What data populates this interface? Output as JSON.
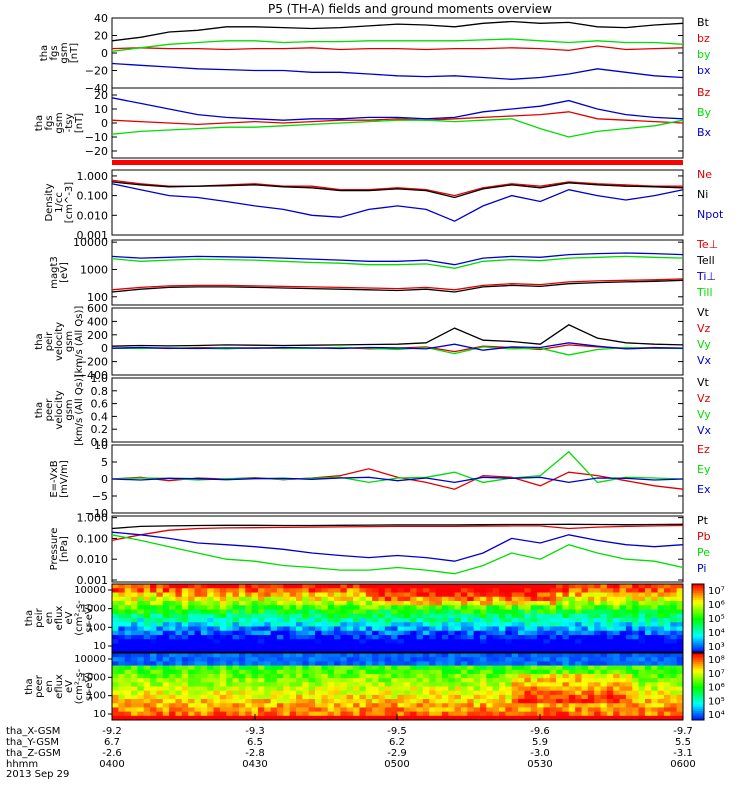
{
  "title": "P5 (TH-A) fields and ground moments overview",
  "date": "2013 Sep 29",
  "colors": {
    "black": "#000000",
    "red": "#e00000",
    "green": "#00dd00",
    "blue": "#0000cc"
  },
  "colorbar_ion": [
    "10⁷",
    "10⁶",
    "10⁵",
    "10⁴",
    "10³"
  ],
  "colorbar_electron": [
    "10⁸",
    "10⁷",
    "10⁶",
    "10⁵",
    "10⁴"
  ],
  "footer": {
    "rows": [
      {
        "label": "tha_X-GSM",
        "values": [
          "-9.2",
          "-9.3",
          "-9.5",
          "-9.6",
          "-9.7"
        ]
      },
      {
        "label": "tha_Y-GSM",
        "values": [
          "6.7",
          "6.5",
          "6.2",
          "5.9",
          "5.5"
        ]
      },
      {
        "label": "tha_Z-GSM",
        "values": [
          "-2.6",
          "-2.8",
          "-2.9",
          "-3.0",
          "-3.1"
        ]
      },
      {
        "label": "hhmm",
        "values": [
          "0400",
          "0430",
          "0500",
          "0530",
          "0600"
        ]
      }
    ]
  },
  "chart_data": [
    {
      "type": "line",
      "ylabel": [
        "tha",
        "fgs",
        "gsm",
        "[nT]"
      ],
      "ylim": [
        -40,
        40
      ],
      "ticks": [
        {
          "v": 40,
          "t": "40"
        },
        {
          "v": 20,
          "t": "20"
        },
        {
          "v": 0,
          "t": "0"
        },
        {
          "v": -20,
          "t": "−20"
        },
        {
          "v": -40,
          "t": "−40"
        }
      ],
      "series": [
        {
          "name": "Bt",
          "color": "black",
          "values": [
            14,
            18,
            24,
            26,
            30,
            30,
            29,
            28,
            29,
            31,
            33,
            32,
            30,
            34,
            36,
            34,
            35,
            30,
            29,
            32,
            34
          ]
        },
        {
          "name": "bz",
          "color": "red",
          "values": [
            5,
            6,
            5,
            5,
            4,
            5,
            5,
            6,
            4,
            5,
            5,
            4,
            5,
            5,
            6,
            5,
            3,
            8,
            4,
            5,
            6
          ]
        },
        {
          "name": "by",
          "color": "green",
          "values": [
            2,
            6,
            10,
            12,
            14,
            14,
            12,
            13,
            13,
            14,
            14,
            14,
            14,
            15,
            16,
            14,
            12,
            14,
            12,
            12,
            10
          ]
        },
        {
          "name": "bx",
          "color": "blue",
          "values": [
            -12,
            -14,
            -16,
            -18,
            -19,
            -20,
            -20,
            -22,
            -22,
            -24,
            -26,
            -27,
            -26,
            -28,
            -30,
            -28,
            -24,
            -18,
            -22,
            -26,
            -28
          ]
        }
      ]
    },
    {
      "type": "line",
      "ylabel": [
        "tha",
        "fgs",
        "gsm",
        "-tsy",
        "[nT]"
      ],
      "ylim": [
        -25,
        25
      ],
      "ticks": [
        {
          "v": 20,
          "t": "20"
        },
        {
          "v": 10,
          "t": "10"
        },
        {
          "v": 0,
          "t": "0"
        },
        {
          "v": -10,
          "t": "−10"
        },
        {
          "v": -20,
          "t": "−20"
        }
      ],
      "series": [
        {
          "name": "Bz",
          "color": "red",
          "values": [
            2,
            1,
            0,
            -1,
            0,
            1,
            0,
            1,
            2,
            2,
            3,
            2,
            3,
            4,
            5,
            6,
            8,
            3,
            2,
            1,
            0
          ]
        },
        {
          "name": "By",
          "color": "green",
          "values": [
            -8,
            -6,
            -5,
            -4,
            -3,
            -3,
            -2,
            -1,
            0,
            1,
            2,
            2,
            1,
            2,
            3,
            -4,
            -10,
            -6,
            -4,
            -2,
            2
          ]
        },
        {
          "name": "Bx",
          "color": "blue",
          "values": [
            18,
            14,
            10,
            6,
            4,
            3,
            2,
            3,
            3,
            4,
            4,
            3,
            4,
            8,
            10,
            12,
            16,
            10,
            6,
            4,
            3
          ]
        }
      ]
    },
    {
      "type": "line",
      "log": true,
      "ylabel": [
        "Density",
        "1/cc",
        "[cm^-3]"
      ],
      "ylim": [
        0.001,
        2
      ],
      "ticks": [
        {
          "v": 1,
          "t": "1.000"
        },
        {
          "v": 0.1,
          "t": "0.100"
        },
        {
          "v": 0.01,
          "t": "0.010"
        },
        {
          "v": 0.001,
          "t": "0.001"
        }
      ],
      "series": [
        {
          "name": "Ne",
          "color": "red",
          "values": [
            0.6,
            0.4,
            0.3,
            0.3,
            0.35,
            0.4,
            0.3,
            0.3,
            0.2,
            0.2,
            0.25,
            0.2,
            0.1,
            0.25,
            0.4,
            0.3,
            0.5,
            0.4,
            0.35,
            0.3,
            0.3
          ]
        },
        {
          "name": "Ni",
          "color": "black",
          "values": [
            0.5,
            0.35,
            0.28,
            0.3,
            0.32,
            0.35,
            0.28,
            0.25,
            0.18,
            0.18,
            0.22,
            0.18,
            0.08,
            0.22,
            0.35,
            0.25,
            0.45,
            0.35,
            0.3,
            0.28,
            0.25
          ]
        },
        {
          "name": "Npot",
          "color": "blue",
          "values": [
            0.4,
            0.2,
            0.1,
            0.08,
            0.05,
            0.03,
            0.02,
            0.01,
            0.008,
            0.02,
            0.03,
            0.02,
            0.005,
            0.03,
            0.1,
            0.05,
            0.2,
            0.1,
            0.06,
            0.1,
            0.2
          ]
        }
      ]
    },
    {
      "type": "line",
      "log": true,
      "ylabel": [
        "magt3",
        "[eV]"
      ],
      "ylim": [
        50,
        12000
      ],
      "ticks": [
        {
          "v": 10000,
          "t": "10000"
        },
        {
          "v": 1000,
          "t": "1000"
        },
        {
          "v": 100,
          "t": "100"
        }
      ],
      "series": [
        {
          "name": "Te⊥",
          "color": "red",
          "values": [
            180,
            220,
            250,
            260,
            260,
            250,
            240,
            230,
            220,
            210,
            200,
            220,
            180,
            260,
            300,
            280,
            350,
            380,
            400,
            420,
            450
          ]
        },
        {
          "name": "Tell",
          "color": "black",
          "values": [
            150,
            190,
            220,
            230,
            230,
            220,
            210,
            200,
            190,
            180,
            170,
            190,
            150,
            230,
            260,
            240,
            300,
            330,
            350,
            370,
            400
          ]
        },
        {
          "name": "Ti⊥",
          "color": "blue",
          "values": [
            3000,
            2600,
            2800,
            3000,
            2900,
            2800,
            2600,
            2400,
            2200,
            2000,
            2000,
            2200,
            1500,
            2600,
            3000,
            2800,
            3500,
            3800,
            4000,
            3800,
            3500
          ]
        },
        {
          "name": "Till",
          "color": "green",
          "values": [
            2500,
            2000,
            2200,
            2400,
            2300,
            2200,
            2000,
            1800,
            1700,
            1500,
            1500,
            1600,
            1100,
            2000,
            2300,
            2100,
            2600,
            2800,
            3000,
            2800,
            2600
          ]
        }
      ]
    },
    {
      "type": "line",
      "ylabel": [
        "tha",
        "peir",
        "velocity",
        "gsm",
        "[km/s (All Qs)]"
      ],
      "ylim": [
        -400,
        600
      ],
      "ticks": [
        {
          "v": 600,
          "t": "600"
        },
        {
          "v": 400,
          "t": "400"
        },
        {
          "v": 200,
          "t": "200"
        },
        {
          "v": 0,
          "t": "0"
        },
        {
          "v": -200,
          "t": "−200"
        },
        {
          "v": -400,
          "t": "−400"
        }
      ],
      "series": [
        {
          "name": "Vt",
          "color": "black",
          "values": [
            30,
            40,
            35,
            40,
            50,
            45,
            40,
            45,
            50,
            55,
            60,
            80,
            300,
            120,
            100,
            60,
            350,
            150,
            80,
            60,
            50
          ]
        },
        {
          "name": "Vz",
          "color": "red",
          "values": [
            0,
            5,
            -5,
            10,
            0,
            5,
            -5,
            0,
            10,
            -10,
            0,
            20,
            -50,
            30,
            10,
            -20,
            50,
            20,
            0,
            10,
            0
          ]
        },
        {
          "name": "Vy",
          "color": "green",
          "values": [
            0,
            -5,
            5,
            0,
            -10,
            5,
            0,
            -5,
            10,
            0,
            -20,
            10,
            -80,
            20,
            -10,
            0,
            -100,
            -20,
            10,
            0,
            -5
          ]
        },
        {
          "name": "Vx",
          "color": "blue",
          "values": [
            0,
            10,
            0,
            -5,
            5,
            0,
            10,
            5,
            -5,
            10,
            5,
            -10,
            60,
            -30,
            20,
            10,
            80,
            30,
            -10,
            5,
            0
          ]
        }
      ]
    },
    {
      "type": "line",
      "ylabel": [
        "tha",
        "peer",
        "velocity",
        "gsm",
        "[km/s (All Qs)]"
      ],
      "ylim": [
        0,
        1
      ],
      "ticks": [
        {
          "v": 1,
          "t": "1.0"
        },
        {
          "v": 0.8,
          "t": "0.8"
        },
        {
          "v": 0.6,
          "t": "0.6"
        },
        {
          "v": 0.4,
          "t": "0.4"
        },
        {
          "v": 0.2,
          "t": "0.2"
        },
        {
          "v": 0,
          "t": "0.0"
        }
      ],
      "series": [
        {
          "name": "Vt",
          "color": "black",
          "values": []
        },
        {
          "name": "Vz",
          "color": "red",
          "values": []
        },
        {
          "name": "Vy",
          "color": "green",
          "values": []
        },
        {
          "name": "Vx",
          "color": "blue",
          "values": []
        }
      ]
    },
    {
      "type": "line",
      "ylabel": [
        "E=-VxB",
        "[mV/m]"
      ],
      "ylim": [
        -10,
        10
      ],
      "ticks": [
        {
          "v": 10,
          "t": "10"
        },
        {
          "v": 5,
          "t": "5"
        },
        {
          "v": 0,
          "t": "0"
        },
        {
          "v": -5,
          "t": "−5"
        },
        {
          "v": -10,
          "t": "−10"
        }
      ],
      "series": [
        {
          "name": "Ez",
          "color": "red",
          "values": [
            0,
            0.5,
            -0.5,
            0.3,
            0,
            0.4,
            -0.2,
            0.3,
            1,
            3,
            0.5,
            -1,
            -3,
            1,
            0.5,
            -2,
            2,
            1,
            -0.5,
            -2,
            -3
          ]
        },
        {
          "name": "Ey",
          "color": "green",
          "values": [
            0,
            0.3,
            0.2,
            -0.3,
            0.1,
            0.2,
            -0.1,
            0.2,
            0.5,
            -1,
            0.3,
            0.5,
            2,
            -1,
            0.3,
            1,
            8,
            -1,
            0.5,
            0.3,
            0
          ]
        },
        {
          "name": "Ex",
          "color": "blue",
          "values": [
            0,
            -0.3,
            0.2,
            0.1,
            -0.2,
            0.1,
            0.2,
            -0.1,
            0.3,
            0.5,
            -0.5,
            0.3,
            -1,
            0.5,
            0.2,
            0.5,
            -1,
            0.3,
            0.2,
            -0.3,
            0
          ]
        }
      ]
    },
    {
      "type": "line",
      "log": true,
      "ylabel": [
        "Pressure",
        "[nPa]"
      ],
      "ylim": [
        0.0008,
        1.2
      ],
      "ticks": [
        {
          "v": 1,
          "t": "1.000"
        },
        {
          "v": 0.1,
          "t": "0.100"
        },
        {
          "v": 0.01,
          "t": "0.010"
        },
        {
          "v": 0.001,
          "t": "0.001"
        }
      ],
      "series": [
        {
          "name": "Pt",
          "color": "black",
          "values": [
            0.3,
            0.38,
            0.4,
            0.42,
            0.43,
            0.43,
            0.42,
            0.42,
            0.43,
            0.44,
            0.45,
            0.45,
            0.45,
            0.46,
            0.47,
            0.47,
            0.48,
            0.47,
            0.46,
            0.47,
            0.48
          ]
        },
        {
          "name": "Pb",
          "color": "red",
          "values": [
            0.08,
            0.15,
            0.25,
            0.3,
            0.32,
            0.33,
            0.34,
            0.35,
            0.36,
            0.37,
            0.38,
            0.38,
            0.38,
            0.39,
            0.4,
            0.4,
            0.3,
            0.35,
            0.38,
            0.4,
            0.42
          ]
        },
        {
          "name": "Pe",
          "color": "green",
          "values": [
            0.15,
            0.08,
            0.04,
            0.02,
            0.01,
            0.008,
            0.005,
            0.004,
            0.003,
            0.003,
            0.004,
            0.003,
            0.002,
            0.005,
            0.02,
            0.01,
            0.05,
            0.02,
            0.01,
            0.008,
            0.004
          ]
        },
        {
          "name": "Pi",
          "color": "blue",
          "values": [
            0.2,
            0.15,
            0.1,
            0.06,
            0.05,
            0.04,
            0.03,
            0.02,
            0.015,
            0.012,
            0.015,
            0.012,
            0.008,
            0.02,
            0.1,
            0.06,
            0.15,
            0.08,
            0.05,
            0.04,
            0.05
          ]
        }
      ]
    },
    {
      "type": "heatmap",
      "ylabel": [
        "tha",
        "peir",
        "en",
        "eflux",
        "eV",
        "(cm²-s-",
        "sr-eV)"
      ],
      "ticks": [
        {
          "t": "10000"
        },
        {
          "t": "1000"
        },
        {
          "t": "100"
        },
        {
          "t": "10"
        }
      ]
    },
    {
      "type": "heatmap",
      "ylabel": [
        "tha",
        "peer",
        "en",
        "eflux",
        "eV",
        "(cm²-s-",
        "sr-eV)"
      ],
      "ticks": [
        {
          "t": "10000"
        },
        {
          "t": "1000"
        },
        {
          "t": "100"
        },
        {
          "t": "10"
        }
      ]
    }
  ]
}
